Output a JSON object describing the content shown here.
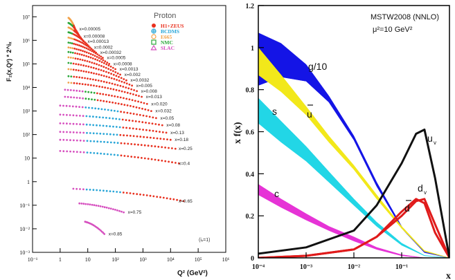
{
  "left_panel": {
    "title": "Proton",
    "xlabel": "Q² (GeV²)",
    "ylabel": "F₂(x,Q²) * 2^iₓ",
    "x_ticks": [
      "10⁻¹",
      "1",
      "10",
      "10²",
      "10³",
      "10⁴",
      "10⁵",
      "10⁶"
    ],
    "y_ticks": [
      "10⁻³",
      "10⁻²",
      "10⁻¹",
      "1",
      "10",
      "10²",
      "10³",
      "10⁴",
      "10⁵",
      "10⁶",
      "10⁷"
    ],
    "legend": [
      {
        "label": "H1+ZEUS",
        "color": "#e8311f",
        "marker": "dot"
      },
      {
        "label": "BCDMS",
        "color": "#2aa6d8",
        "marker": "cross"
      },
      {
        "label": "E665",
        "color": "#f2a24a",
        "marker": "circle"
      },
      {
        "label": "NMC",
        "color": "#2ca83a",
        "marker": "square"
      },
      {
        "label": "SLAC",
        "color": "#d64fbf",
        "marker": "triangle"
      }
    ],
    "bin_labels": [
      "x=0.00005",
      "x=0.00008",
      "x=0.00013",
      "x=0.0002",
      "x=0.00032",
      "x=0.0005",
      "x=0.0008",
      "x=0.0013",
      "x=0.002",
      "x=0.0032",
      "x=0.005",
      "x=0.008",
      "x=0.013",
      "x=0.020",
      "x=0.032",
      "x=0.05",
      "x=0.08",
      "x=0.13",
      "x=0.18",
      "x=0.25",
      "x=0.4",
      "x=0.65",
      "x=0.75",
      "x=0.85"
    ],
    "footnote": "(iₓ=1)"
  },
  "chart_data": [
    {
      "type": "scatter",
      "title": "Proton",
      "xlabel": "Q² (GeV²)",
      "ylabel": "F₂(x,Q²) * 2^iₓ",
      "x_scale": "log",
      "y_scale": "log",
      "xlim": [
        0.1,
        1000000
      ],
      "ylim": [
        0.001,
        30000000
      ],
      "series": [
        {
          "name": "H1+ZEUS",
          "color": "#e8311f"
        },
        {
          "name": "BCDMS",
          "color": "#2aa6d8"
        },
        {
          "name": "E665",
          "color": "#f2a24a"
        },
        {
          "name": "NMC",
          "color": "#2ca83a"
        },
        {
          "name": "SLAC",
          "color": "#d64fbf"
        }
      ],
      "bins": [
        {
          "x": 5e-05,
          "q2_range": [
            2,
            3.5
          ],
          "f2_range": [
            3000000,
            9000000
          ]
        },
        {
          "x": 8e-05,
          "q2_range": [
            2,
            5
          ],
          "f2_range": [
            1500000,
            5500000
          ]
        },
        {
          "x": 0.00013,
          "q2_range": [
            2,
            7
          ],
          "f2_range": [
            900000,
            3500000
          ]
        },
        {
          "x": 0.0002,
          "q2_range": [
            2,
            12
          ],
          "f2_range": [
            500000,
            2200000
          ]
        },
        {
          "x": 0.00032,
          "q2_range": [
            2,
            20
          ],
          "f2_range": [
            300000,
            1300000
          ]
        },
        {
          "x": 0.0005,
          "q2_range": [
            2,
            35
          ],
          "f2_range": [
            180000,
            800000
          ]
        },
        {
          "x": 0.0008,
          "q2_range": [
            2,
            60
          ],
          "f2_range": [
            100000,
            500000
          ]
        },
        {
          "x": 0.0013,
          "q2_range": [
            2,
            100
          ],
          "f2_range": [
            60000,
            320000
          ]
        },
        {
          "x": 0.002,
          "q2_range": [
            2,
            150
          ],
          "f2_range": [
            35000,
            190000
          ]
        },
        {
          "x": 0.0032,
          "q2_range": [
            2,
            250
          ],
          "f2_range": [
            20000,
            110000
          ]
        },
        {
          "x": 0.005,
          "q2_range": [
            2,
            400
          ],
          "f2_range": [
            12000,
            60000
          ]
        },
        {
          "x": 0.008,
          "q2_range": [
            2,
            600
          ],
          "f2_range": [
            7000,
            30000
          ]
        },
        {
          "x": 0.013,
          "q2_range": [
            2,
            900
          ],
          "f2_range": [
            4000,
            16000
          ]
        },
        {
          "x": 0.02,
          "q2_range": [
            1.5,
            1400
          ],
          "f2_range": [
            2000,
            8000
          ]
        },
        {
          "x": 0.032,
          "q2_range": [
            1.5,
            2000
          ],
          "f2_range": [
            1000,
            4000
          ]
        },
        {
          "x": 0.05,
          "q2_range": [
            1,
            3000
          ],
          "f2_range": [
            500,
            1700
          ]
        },
        {
          "x": 0.08,
          "q2_range": [
            1,
            5000
          ],
          "f2_range": [
            250,
            700
          ]
        },
        {
          "x": 0.13,
          "q2_range": [
            1,
            7000
          ],
          "f2_range": [
            120,
            300
          ]
        },
        {
          "x": 0.18,
          "q2_range": [
            1,
            10000
          ],
          "f2_range": [
            60,
            130
          ]
        },
        {
          "x": 0.25,
          "q2_range": [
            1,
            15000
          ],
          "f2_range": [
            25,
            60
          ]
        },
        {
          "x": 0.4,
          "q2_range": [
            1,
            20000
          ],
          "f2_range": [
            6,
            20
          ]
        },
        {
          "x": 0.65,
          "q2_range": [
            3,
            30000
          ],
          "f2_range": [
            0.15,
            0.5
          ]
        },
        {
          "x": 0.75,
          "q2_range": [
            5,
            200
          ],
          "f2_range": [
            0.05,
            0.12
          ]
        },
        {
          "x": 0.85,
          "q2_range": [
            8,
            40
          ],
          "f2_range": [
            0.006,
            0.02
          ]
        }
      ]
    },
    {
      "type": "area",
      "title": "MSTW2008 (NNLO)",
      "subtitle": "μ²=10 GeV²",
      "xlabel": "x",
      "ylabel": "x f(x)",
      "x_scale": "log",
      "xlim": [
        0.0001,
        1
      ],
      "ylim": [
        0,
        1.2
      ],
      "x_ticks": [
        "10⁻⁴",
        "10⁻³",
        "10⁻²",
        "10⁻¹",
        "1"
      ],
      "y_ticks": [
        "0",
        "0.2",
        "0.4",
        "0.6",
        "0.8",
        "1",
        "1.2"
      ],
      "series": [
        {
          "name": "g/10",
          "color": "#1414e6",
          "x": [
            0.0001,
            0.0003,
            0.001,
            0.003,
            0.01,
            0.03,
            0.1,
            0.3,
            1
          ],
          "y_low": [
            0.82,
            0.86,
            0.84,
            0.74,
            0.56,
            0.34,
            0.14,
            0.025,
            0
          ],
          "y_high": [
            1.07,
            1.02,
            0.92,
            0.77,
            0.58,
            0.36,
            0.15,
            0.03,
            0
          ]
        },
        {
          "name": "s",
          "color": "#22d6e6",
          "x": [
            0.0001,
            0.0003,
            0.001,
            0.003,
            0.01,
            0.03,
            0.1,
            0.3,
            1
          ],
          "y_low": [
            0.64,
            0.55,
            0.46,
            0.36,
            0.25,
            0.15,
            0.06,
            0.01,
            0
          ],
          "y_high": [
            0.76,
            0.65,
            0.53,
            0.41,
            0.28,
            0.17,
            0.07,
            0.012,
            0
          ]
        },
        {
          "name": "ū",
          "color": "#f2e81a",
          "x": [
            0.0001,
            0.0003,
            0.001,
            0.003,
            0.01,
            0.03,
            0.1,
            0.3,
            1
          ],
          "y_low": [
            0.87,
            0.79,
            0.68,
            0.55,
            0.42,
            0.28,
            0.14,
            0.03,
            0
          ],
          "y_high": [
            1.0,
            0.87,
            0.72,
            0.58,
            0.44,
            0.3,
            0.15,
            0.035,
            0
          ]
        },
        {
          "name": "c",
          "color": "#e633d6",
          "x": [
            0.0001,
            0.0003,
            0.001,
            0.003,
            0.01,
            0.03,
            0.1,
            0.3,
            1
          ],
          "y_low": [
            0.3,
            0.24,
            0.18,
            0.13,
            0.08,
            0.04,
            0.01,
            0,
            0
          ],
          "y_high": [
            0.35,
            0.28,
            0.21,
            0.15,
            0.1,
            0.05,
            0.015,
            0,
            0
          ]
        },
        {
          "name": "d̄",
          "color": "#e01b1b",
          "x": [
            0.0001,
            0.001,
            0.01,
            0.03,
            0.1,
            0.2,
            0.3,
            0.5,
            1
          ],
          "y": [
            0.0,
            0.01,
            0.04,
            0.1,
            0.22,
            0.28,
            0.26,
            0.12,
            0
          ]
        },
        {
          "name": "d_v",
          "color": "#e01b1b",
          "x": [
            0.0001,
            0.001,
            0.01,
            0.03,
            0.1,
            0.2,
            0.3,
            0.5,
            1
          ],
          "y": [
            0.0,
            0.01,
            0.04,
            0.1,
            0.2,
            0.27,
            0.28,
            0.16,
            0
          ]
        },
        {
          "name": "u_v",
          "color": "#111111",
          "x": [
            0.0001,
            0.001,
            0.01,
            0.03,
            0.1,
            0.2,
            0.3,
            0.5,
            1
          ],
          "y": [
            0.02,
            0.05,
            0.13,
            0.25,
            0.45,
            0.59,
            0.61,
            0.38,
            0
          ]
        }
      ],
      "curve_labels": [
        "g/10",
        "s",
        "ū",
        "c",
        "u_v",
        "d_v",
        "d̄"
      ]
    }
  ],
  "right_panel": {
    "title": "MSTW2008 (NNLO)",
    "subtitle": "μ²=10 GeV²",
    "xlabel": "x",
    "ylabel": "x f(x)",
    "x_ticks": [
      "10⁻⁴",
      "10⁻³",
      "10⁻²",
      "10⁻¹",
      "1"
    ],
    "y_ticks": [
      "0",
      "0.2",
      "0.4",
      "0.6",
      "0.8",
      "1",
      "1.2"
    ],
    "labels": {
      "g": "g/10",
      "s": "s",
      "ubar": "u",
      "c": "c",
      "uv": "u",
      "uv_sub": "v",
      "dv": "d",
      "dv_sub": "v",
      "dbar": "d"
    }
  }
}
